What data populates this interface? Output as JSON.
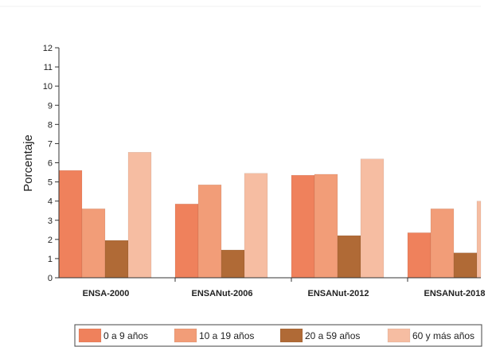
{
  "chart_data": {
    "type": "bar",
    "title": "",
    "xlabel": "",
    "ylabel": "Porcentaje",
    "ylim": [
      0,
      12
    ],
    "yticks": [
      0,
      1,
      2,
      3,
      4,
      5,
      6,
      7,
      8,
      9,
      10,
      11,
      12
    ],
    "categories": [
      "ENSA-2000",
      "ENSANut-2006",
      "ENSANut-2012",
      "ENSANut-2018"
    ],
    "series": [
      {
        "name": "0 a 9 años",
        "color": "#ef815c",
        "values": [
          5.6,
          3.85,
          5.35,
          2.35
        ]
      },
      {
        "name": "10 a 19 años",
        "color": "#f29d78",
        "values": [
          3.6,
          4.85,
          5.4,
          3.6
        ]
      },
      {
        "name": "20 a 59 años",
        "color": "#b06a36",
        "values": [
          1.95,
          1.45,
          2.2,
          1.3
        ]
      },
      {
        "name": "60 y más años",
        "color": "#f6bda2",
        "values": [
          6.55,
          5.45,
          6.2,
          4.0
        ]
      }
    ],
    "grid": false,
    "legend_position": "bottom"
  }
}
